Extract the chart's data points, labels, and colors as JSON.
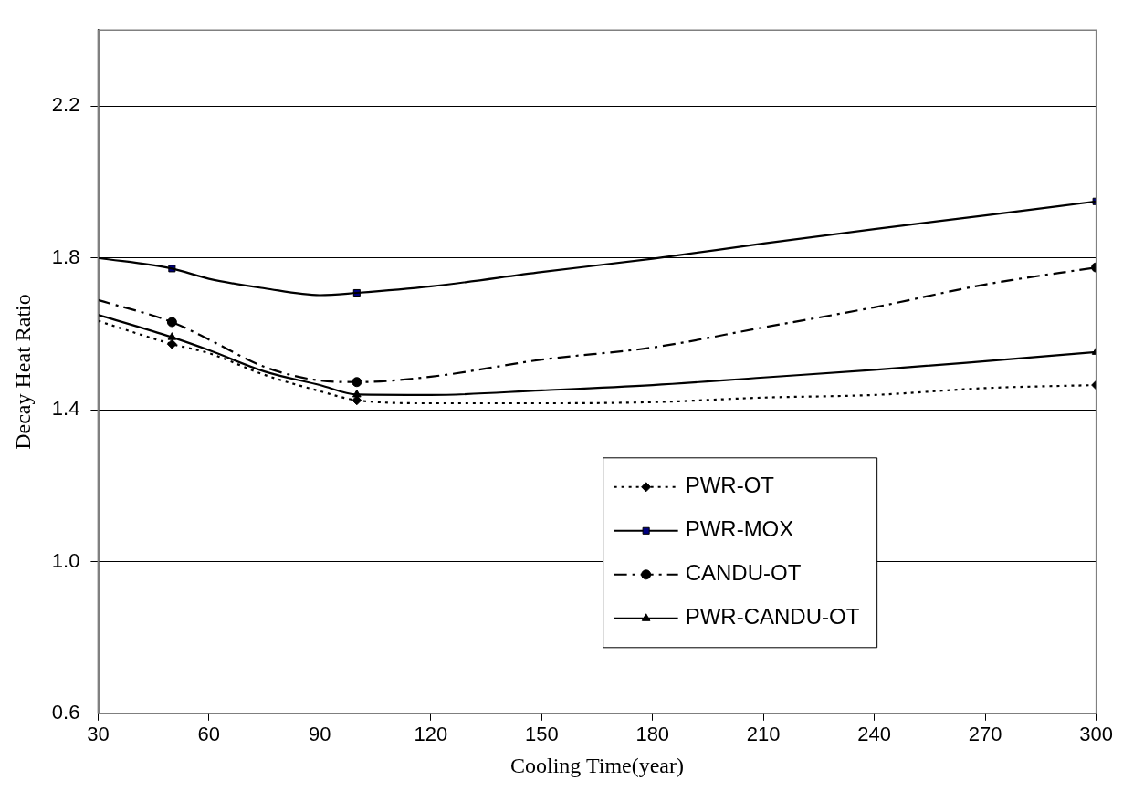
{
  "chart_data": {
    "type": "line",
    "xlabel": "Cooling Time(year)",
    "ylabel": "Decay Heat Ratio",
    "x": [
      30,
      50,
      60,
      75,
      90,
      100,
      120,
      150,
      180,
      210,
      240,
      270,
      300
    ],
    "xlim": [
      30,
      300
    ],
    "xticks": [
      30,
      60,
      90,
      120,
      150,
      180,
      210,
      240,
      270,
      300
    ],
    "ylim": [
      0.6,
      2.4
    ],
    "yticks": [
      0.6,
      {
        "value": 1,
        "label": "1.0"
      },
      1.4,
      1.8,
      2.2
    ],
    "grid": "y",
    "legend": "bottom right",
    "marker": "none",
    "series": [
      {
        "name": "PWR-OT",
        "color": "#000000",
        "line_style": "dotted",
        "values": [
          1.634,
          1.573,
          1.549,
          1.492,
          1.449,
          1.425,
          1.417,
          1.417,
          1.42,
          1.432,
          1.439,
          1.457,
          1.465
        ]
      },
      {
        "name": "PWR-MOX",
        "color": "#000000",
        "line_style": "solid",
        "values": [
          1.8,
          1.772,
          1.745,
          1.72,
          1.702,
          1.708,
          1.725,
          1.763,
          1.798,
          1.838,
          1.876,
          1.912,
          1.949
        ]
      },
      {
        "name": "CANDU-OT",
        "color": "#000000",
        "line_style": "dashed",
        "values": [
          1.689,
          1.631,
          1.585,
          1.513,
          1.477,
          1.473,
          1.487,
          1.532,
          1.564,
          1.617,
          1.67,
          1.73,
          1.775
        ]
      },
      {
        "name": "PWR-CANDU-OT",
        "color": "#000000",
        "line_style": "solid",
        "values": [
          1.65,
          1.591,
          1.557,
          1.501,
          1.465,
          1.44,
          1.439,
          1.451,
          1.465,
          1.485,
          1.505,
          1.528,
          1.552
        ]
      },
      {
        "type": "scatter",
        "marker": "diamond",
        "color": "#000000",
        "x": [
          50,
          100,
          300
        ],
        "values": [
          1.573,
          1.425,
          1.465
        ]
      },
      {
        "type": "scatter",
        "marker": "square",
        "color": "#000080",
        "x": [
          50,
          100,
          300
        ],
        "values": [
          1.772,
          1.708,
          1.949
        ]
      },
      {
        "type": "scatter",
        "marker": "circle",
        "color": "#000000",
        "x": [
          50,
          100,
          300
        ],
        "values": [
          1.631,
          1.473,
          1.775
        ]
      },
      {
        "type": "scatter",
        "marker": "triangle",
        "color": "#000000",
        "x": [
          50,
          100,
          300
        ],
        "values": [
          1.591,
          1.44,
          1.552
        ]
      }
    ]
  }
}
